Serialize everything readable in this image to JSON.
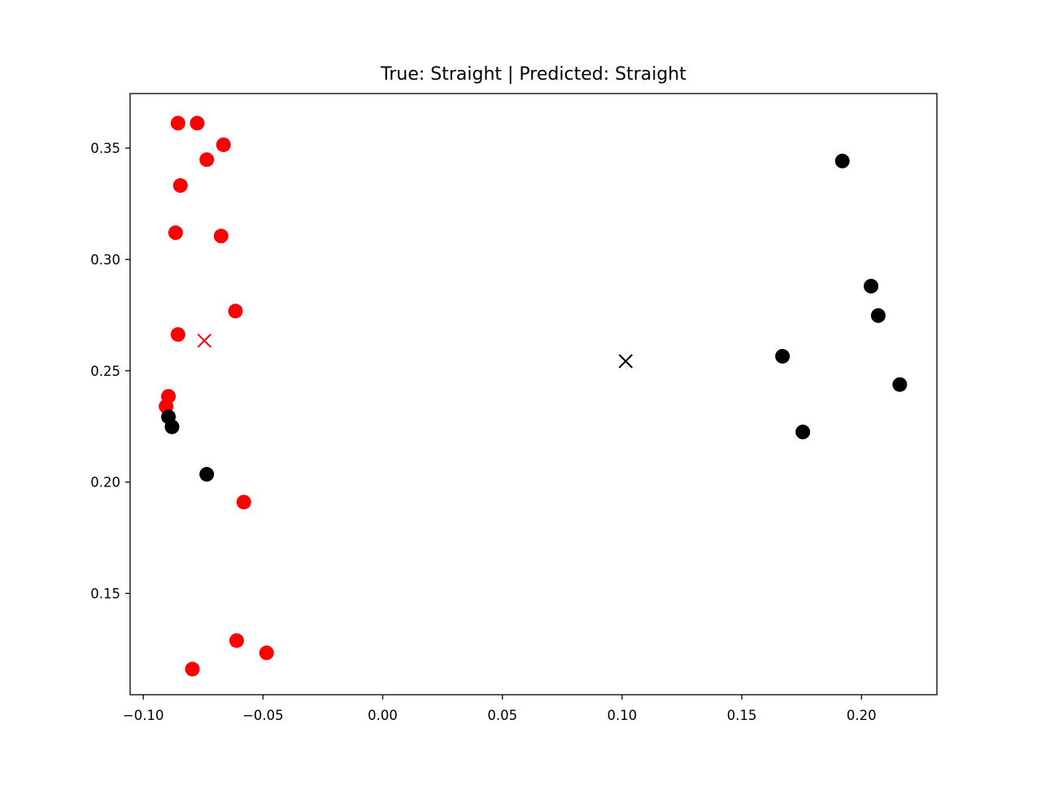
{
  "chart_data": {
    "type": "scatter",
    "title": "True: Straight | Predicted: Straight",
    "xlabel": "",
    "ylabel": "",
    "xlim": [
      -0.1055,
      0.2315
    ],
    "ylim": [
      0.1045,
      0.3745
    ],
    "xticks": [
      -0.1,
      -0.05,
      0.0,
      0.05,
      0.1,
      0.15,
      0.2
    ],
    "xtick_labels": [
      "−0.10",
      "−0.05",
      "0.00",
      "0.05",
      "0.10",
      "0.15",
      "0.20"
    ],
    "yticks": [
      0.15,
      0.2,
      0.25,
      0.3,
      0.35
    ],
    "ytick_labels": [
      "0.15",
      "0.20",
      "0.25",
      "0.30",
      "0.35"
    ],
    "grid": false,
    "legend": "none",
    "series": [
      {
        "color": "#ff0000",
        "marker": "circle",
        "points": [
          [
            -0.0855,
            0.3612
          ],
          [
            -0.0775,
            0.3612
          ],
          [
            -0.0665,
            0.3515
          ],
          [
            -0.0735,
            0.3448
          ],
          [
            -0.0845,
            0.3332
          ],
          [
            -0.0865,
            0.312
          ],
          [
            -0.0675,
            0.3105
          ],
          [
            -0.0615,
            0.2768
          ],
          [
            -0.0855,
            0.2663
          ],
          [
            -0.0895,
            0.2385
          ],
          [
            -0.0905,
            0.234
          ],
          [
            -0.058,
            0.191
          ],
          [
            -0.061,
            0.1288
          ],
          [
            -0.0485,
            0.1233
          ],
          [
            -0.0795,
            0.116
          ]
        ]
      },
      {
        "color": "#000000",
        "marker": "circle",
        "points": [
          [
            -0.0895,
            0.2293
          ],
          [
            -0.088,
            0.2248
          ],
          [
            -0.0735,
            0.2035
          ],
          [
            0.192,
            0.3442
          ],
          [
            0.204,
            0.288
          ],
          [
            0.207,
            0.2748
          ],
          [
            0.167,
            0.2565
          ],
          [
            0.216,
            0.2438
          ],
          [
            0.1755,
            0.2225
          ]
        ]
      },
      {
        "color": "#ff0000",
        "marker": "x",
        "points": [
          [
            -0.0745,
            0.2635
          ]
        ]
      },
      {
        "color": "#000000",
        "marker": "x",
        "points": [
          [
            0.1015,
            0.2543
          ]
        ]
      }
    ]
  }
}
